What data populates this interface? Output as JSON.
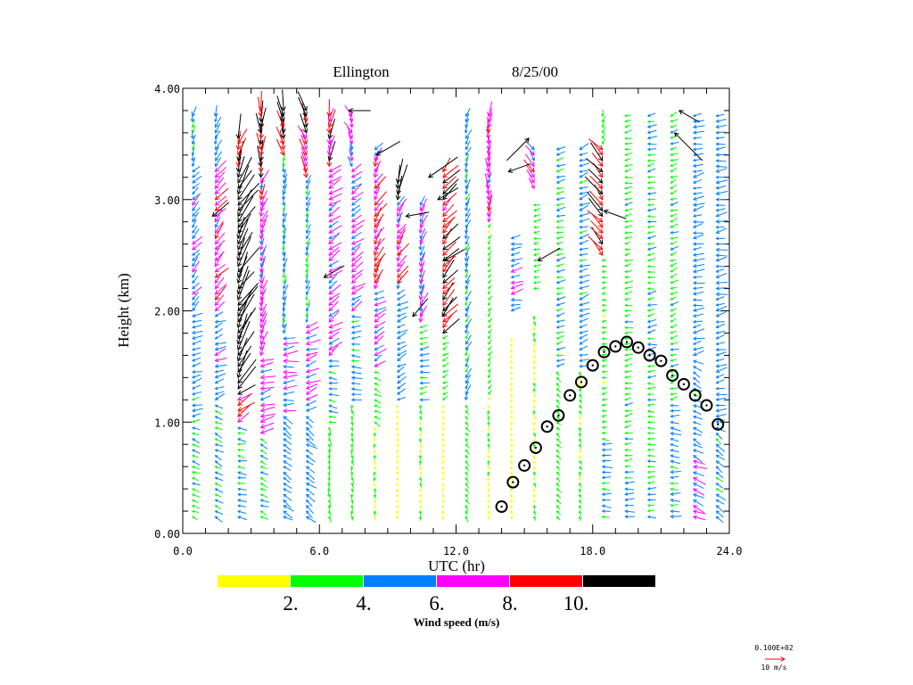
{
  "chart_data": {
    "type": "wind-profile",
    "title": "Ellington",
    "date": "8/25/00",
    "xlabel": "UTC (hr)",
    "ylabel": "Height (km)",
    "xlim": [
      0,
      24
    ],
    "ylim": [
      0,
      4
    ],
    "x_ticks": [
      "0.0",
      "6.0",
      "12.0",
      "18.0",
      "24.0"
    ],
    "x_tick_values": [
      0,
      6,
      12,
      18,
      24
    ],
    "y_ticks": [
      "0.00",
      "1.00",
      "2.00",
      "3.00",
      "4.00"
    ],
    "y_tick_values": [
      0,
      1,
      2,
      3,
      4
    ],
    "colorbar": {
      "label": "Wind speed (m/s)",
      "tick_labels": [
        "2.",
        "4.",
        "6.",
        "8.",
        "10."
      ],
      "colors": [
        "#ffff00",
        "#00ff00",
        "#0080ff",
        "#ff00ff",
        "#ff0000",
        "#000000"
      ],
      "bounds": [
        2,
        4,
        6,
        8,
        10
      ]
    },
    "reference_vector": {
      "value_label": "0.100E+02",
      "units_label": "10 m/s",
      "speed": 10,
      "color": "#ff0000"
    },
    "level_spacing_km": 0.05,
    "wind_columns_note": "segments: [bottom_km, top_km, speed_m_s, direction_from_deg]",
    "wind_columns": [
      {
        "hour": 0.43,
        "segments": [
          [
            0.15,
            1.0,
            3.6,
            110
          ],
          [
            1.0,
            2.0,
            4.6,
            75
          ],
          [
            2.0,
            3.3,
            5.4,
            40
          ],
          [
            3.3,
            3.8,
            4.6,
            10
          ]
        ]
      },
      {
        "hour": 1.43,
        "segments": [
          [
            0.15,
            1.2,
            3.8,
            115
          ],
          [
            1.2,
            2.0,
            5.2,
            70
          ],
          [
            2.0,
            3.3,
            7.4,
            40
          ],
          [
            3.3,
            3.8,
            5.0,
            20
          ]
        ]
      },
      {
        "hour": 2.43,
        "segments": [
          [
            0.15,
            1.0,
            4.0,
            100
          ],
          [
            1.0,
            1.3,
            8.5,
            60
          ],
          [
            1.3,
            3.2,
            14,
            30
          ],
          [
            3.2,
            3.6,
            11,
            20
          ]
        ]
      },
      {
        "hour": 3.43,
        "segments": [
          [
            0.15,
            0.9,
            3.6,
            115
          ],
          [
            0.9,
            1.6,
            6.6,
            75
          ],
          [
            1.6,
            3.2,
            6.8,
            20
          ],
          [
            3.2,
            3.85,
            9.5,
            0
          ]
        ]
      },
      {
        "hour": 4.43,
        "segments": [
          [
            0.15,
            1.1,
            5.0,
            125
          ],
          [
            1.1,
            1.8,
            6.5,
            85
          ],
          [
            1.8,
            3.4,
            4.6,
            10
          ],
          [
            3.4,
            3.85,
            10.5,
            345
          ]
        ]
      },
      {
        "hour": 5.43,
        "segments": [
          [
            0.15,
            1.1,
            5.0,
            125
          ],
          [
            1.1,
            1.9,
            6.6,
            70
          ],
          [
            1.9,
            3.2,
            4.2,
            20
          ],
          [
            3.2,
            3.85,
            9.2,
            340
          ]
        ]
      },
      {
        "hour": 6.43,
        "segments": [
          [
            0.15,
            1.0,
            3.2,
            175
          ],
          [
            1.0,
            1.6,
            4.4,
            100
          ],
          [
            1.6,
            3.3,
            6.6,
            55
          ],
          [
            3.3,
            3.8,
            9.0,
            10
          ]
        ]
      },
      {
        "hour": 7.43,
        "segments": [
          [
            0.15,
            1.2,
            2.6,
            170
          ],
          [
            1.2,
            2.0,
            4.6,
            90
          ],
          [
            2.0,
            3.3,
            6.2,
            55
          ],
          [
            3.3,
            3.8,
            6.5,
            340
          ]
        ]
      },
      {
        "hour": 8.43,
        "segments": [
          [
            0.15,
            1.0,
            2.0,
            180
          ],
          [
            1.0,
            1.5,
            3.2,
            115
          ],
          [
            1.5,
            2.2,
            6.0,
            60
          ],
          [
            2.2,
            3.4,
            7.8,
            30
          ],
          [
            3.4,
            3.5,
            5.0,
            60
          ]
        ]
      },
      {
        "hour": 9.43,
        "segments": [
          [
            0.15,
            1.2,
            1.6,
            180
          ],
          [
            1.2,
            2.2,
            5.0,
            60
          ],
          [
            2.2,
            3.0,
            7.0,
            30
          ],
          [
            3.0,
            3.2,
            14,
            20
          ]
        ]
      },
      {
        "hour": 10.43,
        "segments": [
          [
            0.15,
            1.2,
            2.2,
            170
          ],
          [
            1.2,
            1.9,
            4.2,
            80
          ],
          [
            1.9,
            3.0,
            6.4,
            20
          ]
        ]
      },
      {
        "hour": 11.43,
        "segments": [
          [
            0.15,
            1.2,
            1.6,
            180
          ],
          [
            1.2,
            1.8,
            3.0,
            60
          ],
          [
            1.8,
            3.3,
            9.5,
            40
          ]
        ]
      },
      {
        "hour": 12.43,
        "segments": [
          [
            0.15,
            1.2,
            2.6,
            150
          ],
          [
            1.2,
            3.8,
            4.6,
            20
          ]
        ]
      },
      {
        "hour": 13.43,
        "segments": [
          [
            0.15,
            1.2,
            2.0,
            180
          ],
          [
            1.2,
            2.8,
            2.4,
            30
          ],
          [
            2.8,
            3.8,
            7.0,
            0
          ]
        ]
      },
      {
        "hour": 14.43,
        "segments": [
          [
            0.15,
            1.8,
            1.5,
            180
          ],
          [
            2.0,
            2.7,
            5.5,
            80
          ]
        ]
      },
      {
        "hour": 15.43,
        "segments": [
          [
            0.15,
            2.0,
            1.9,
            170
          ],
          [
            2.2,
            3.0,
            3.2,
            80
          ],
          [
            3.1,
            3.5,
            7.0,
            330
          ]
        ]
      },
      {
        "hour": 16.43,
        "segments": [
          [
            0.15,
            1.5,
            2.6,
            140
          ],
          [
            1.5,
            3.5,
            4.0,
            75
          ]
        ]
      },
      {
        "hour": 17.43,
        "segments": [
          [
            0.15,
            1.5,
            2.1,
            160
          ],
          [
            1.5,
            3.5,
            4.6,
            70
          ]
        ]
      },
      {
        "hour": 18.43,
        "segments": [
          [
            0.15,
            0.9,
            4.4,
            95
          ],
          [
            0.9,
            2.5,
            2.4,
            80
          ],
          [
            2.5,
            3.5,
            10.5,
            320
          ],
          [
            3.5,
            3.8,
            3.0,
            20
          ]
        ]
      },
      {
        "hour": 19.43,
        "segments": [
          [
            0.15,
            0.6,
            4.4,
            90
          ],
          [
            0.6,
            3.8,
            3.4,
            80
          ]
        ]
      },
      {
        "hour": 20.43,
        "segments": [
          [
            0.15,
            1.5,
            3.6,
            90
          ],
          [
            1.5,
            3.8,
            4.0,
            80
          ]
        ]
      },
      {
        "hour": 21.43,
        "segments": [
          [
            0.15,
            1.2,
            4.6,
            95
          ],
          [
            1.2,
            3.8,
            3.6,
            70
          ]
        ]
      },
      {
        "hour": 22.43,
        "segments": [
          [
            0.15,
            0.7,
            6.4,
            110
          ],
          [
            0.7,
            1.6,
            4.8,
            120
          ],
          [
            1.6,
            3.8,
            5.0,
            80
          ]
        ]
      },
      {
        "hour": 23.43,
        "segments": [
          [
            0.15,
            1.0,
            4.8,
            125
          ],
          [
            1.0,
            3.8,
            5.0,
            80
          ]
        ]
      }
    ],
    "isolated_vectors_note": "[hour, km, speed_m_s, direction_from_deg]",
    "isolated_vectors": [
      [
        1.3,
        2.85,
        11,
        50
      ],
      [
        6.2,
        2.3,
        12,
        60
      ],
      [
        8.5,
        3.4,
        14,
        60
      ],
      [
        10.8,
        3.2,
        18,
        55
      ],
      [
        11.2,
        3.0,
        12,
        60
      ],
      [
        9.8,
        2.85,
        12,
        80
      ],
      [
        11.5,
        2.45,
        12,
        60
      ],
      [
        11.4,
        1.95,
        11,
        30
      ],
      [
        10.1,
        1.95,
        12,
        40
      ],
      [
        14.3,
        3.25,
        12,
        70
      ],
      [
        15.2,
        3.55,
        16,
        225
      ],
      [
        15.6,
        2.45,
        13,
        60
      ],
      [
        18.5,
        2.9,
        12,
        110
      ],
      [
        21.8,
        3.8,
        12,
        120
      ],
      [
        21.6,
        3.6,
        20,
        135
      ],
      [
        7.3,
        3.8,
        11,
        90
      ]
    ],
    "mixing_height": {
      "hours": [
        14.0,
        14.5,
        15.0,
        15.5,
        16.0,
        16.5,
        17.0,
        17.5,
        18.0,
        18.5,
        19.0,
        19.5,
        20.0,
        20.5,
        21.0,
        21.5,
        22.0,
        22.5,
        23.0,
        23.5
      ],
      "km": [
        0.24,
        0.46,
        0.61,
        0.77,
        0.96,
        1.06,
        1.24,
        1.36,
        1.51,
        1.63,
        1.68,
        1.72,
        1.67,
        1.6,
        1.55,
        1.42,
        1.34,
        1.24,
        1.15,
        0.98
      ]
    }
  }
}
